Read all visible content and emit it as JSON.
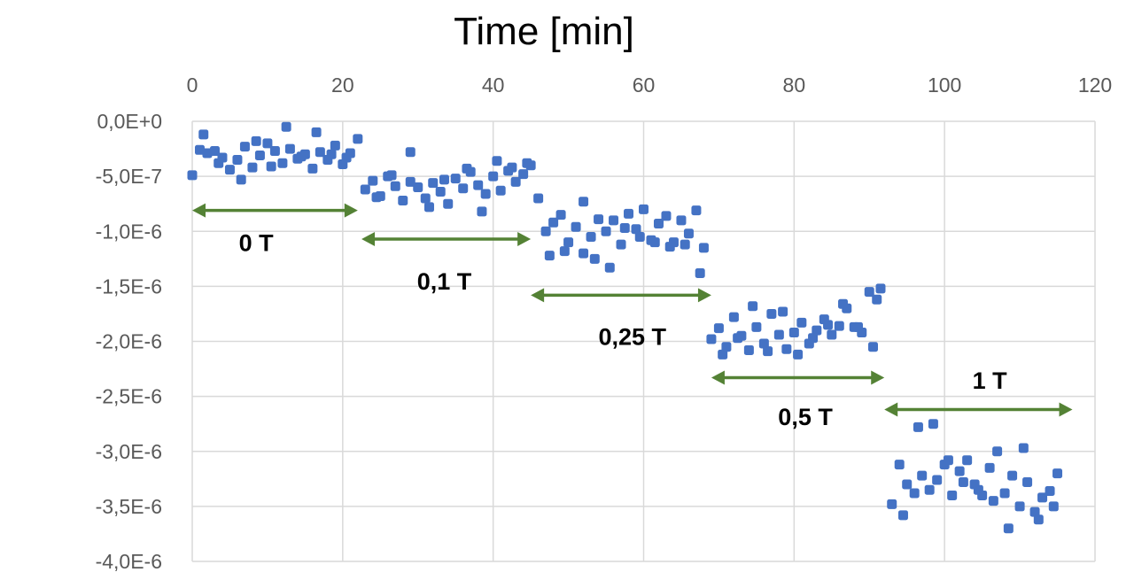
{
  "chart_data": {
    "type": "scatter",
    "title": "Time [min]",
    "xlabel": "",
    "ylabel": "",
    "xlim": [
      0,
      120
    ],
    "ylim": [
      -4e-06,
      0
    ],
    "x_axis_position": "top",
    "grid": true,
    "xticks": [
      "0",
      "20",
      "40",
      "60",
      "80",
      "100",
      "120"
    ],
    "yticks": [
      "0,0E+0",
      "-5,0E-7",
      "-1,0E-6",
      "-1,5E-6",
      "-2,0E-6",
      "-2,5E-6",
      "-3,0E-6",
      "-3,5E-6",
      "-4,0E-6"
    ],
    "marker_color": "#4472c4",
    "series": [
      {
        "x": [
          0,
          1,
          2,
          3,
          4,
          5,
          6,
          7,
          8,
          9,
          10,
          11,
          12,
          13,
          14,
          15,
          16,
          17,
          18,
          19,
          20,
          21,
          22,
          1.5,
          3.5,
          6.5,
          8.5,
          10.5,
          12.5,
          14.5,
          16.5,
          18.5,
          20.5
        ],
        "y": [
          -4.9e-07,
          -2.6e-07,
          -2.9e-07,
          -2.7e-07,
          -3.3e-07,
          -4.4e-07,
          -3.5e-07,
          -2.3e-07,
          -4.2e-07,
          -3.1e-07,
          -2e-07,
          -2.7e-07,
          -3.8e-07,
          -2.5e-07,
          -3.4e-07,
          -3e-07,
          -4.3e-07,
          -2.8e-07,
          -3.5e-07,
          -2.2e-07,
          -3.9e-07,
          -2.9e-07,
          -1.6e-07,
          -1.2e-07,
          -3.8e-07,
          -5.3e-07,
          -1.8e-07,
          -4.1e-07,
          -5e-08,
          -3.2e-07,
          -1e-07,
          -3e-07,
          -3.3e-07
        ]
      },
      {
        "x": [
          23,
          24,
          25,
          26,
          27,
          28,
          29,
          30,
          31,
          32,
          33,
          34,
          35,
          36,
          37,
          38,
          39,
          40,
          41,
          42,
          43,
          44,
          45,
          24.5,
          26.5,
          29,
          31.5,
          33.5,
          36.5,
          38.5,
          40.5,
          42.5,
          44.5
        ],
        "y": [
          -6.2e-07,
          -5.4e-07,
          -6.8e-07,
          -5e-07,
          -5.9e-07,
          -7.2e-07,
          -5.5e-07,
          -6e-07,
          -7e-07,
          -5.6e-07,
          -6.4e-07,
          -7.5e-07,
          -5.2e-07,
          -6.1e-07,
          -4.6e-07,
          -5.8e-07,
          -6.6e-07,
          -5e-07,
          -6.3e-07,
          -4.5e-07,
          -5.5e-07,
          -4.8e-07,
          -4e-07,
          -6.9e-07,
          -4.9e-07,
          -2.8e-07,
          -7.8e-07,
          -5.3e-07,
          -4.3e-07,
          -8.2e-07,
          -3.6e-07,
          -4.2e-07,
          -3.8e-07
        ]
      },
      {
        "x": [
          46,
          47,
          48,
          49,
          50,
          51,
          52,
          53,
          54,
          55,
          56,
          57,
          58,
          59,
          60,
          61,
          62,
          63,
          64,
          65,
          66,
          67,
          68,
          47.5,
          49.5,
          52,
          53.5,
          55.5,
          57.5,
          59.5,
          61.5,
          63.5,
          65.5,
          67.5
        ],
        "y": [
          -7e-07,
          -1e-06,
          -9.2e-07,
          -8.5e-07,
          -1.1e-06,
          -9.6e-07,
          -7.3e-07,
          -1.05e-06,
          -8.9e-07,
          -1e-06,
          -9e-07,
          -1.12e-06,
          -8.4e-07,
          -9.8e-07,
          -8e-07,
          -1.08e-06,
          -9.3e-07,
          -8.6e-07,
          -1.1e-06,
          -9e-07,
          -1.02e-06,
          -8.1e-07,
          -1.15e-06,
          -1.22e-06,
          -1.18e-06,
          -1.2e-06,
          -1.25e-06,
          -1.33e-06,
          -9.7e-07,
          -1.05e-06,
          -1.1e-06,
          -1.14e-06,
          -1.12e-06,
          -1.38e-06
        ]
      },
      {
        "x": [
          69,
          70,
          71,
          72,
          73,
          74,
          75,
          76,
          77,
          78,
          79,
          80,
          81,
          82,
          83,
          84,
          85,
          86,
          87,
          88,
          89,
          90,
          91,
          70.5,
          72.5,
          74.5,
          76.5,
          78.5,
          80.5,
          82.5,
          84.5,
          86.5,
          88.5,
          90.5,
          91.5
        ],
        "y": [
          -1.98e-06,
          -1.88e-06,
          -2.05e-06,
          -1.78e-06,
          -1.95e-06,
          -2.08e-06,
          -1.87e-06,
          -2.02e-06,
          -1.75e-06,
          -1.94e-06,
          -2.07e-06,
          -1.92e-06,
          -1.83e-06,
          -2.02e-06,
          -1.9e-06,
          -1.8e-06,
          -1.94e-06,
          -1.86e-06,
          -1.7e-06,
          -1.87e-06,
          -1.92e-06,
          -1.55e-06,
          -1.62e-06,
          -2.12e-06,
          -1.97e-06,
          -1.68e-06,
          -2.09e-06,
          -1.73e-06,
          -2.12e-06,
          -1.97e-06,
          -1.85e-06,
          -1.66e-06,
          -1.87e-06,
          -2.05e-06,
          -1.52e-06
        ]
      },
      {
        "x": [
          93,
          94,
          95,
          96,
          97,
          98,
          99,
          100,
          101,
          102,
          103,
          104,
          105,
          106,
          107,
          108,
          109,
          110,
          111,
          112,
          113,
          114,
          115,
          94.5,
          96.5,
          98.5,
          100.5,
          102.5,
          104.5,
          106.5,
          108.5,
          110.5,
          112.5,
          114.5
        ],
        "y": [
          -3.48e-06,
          -3.12e-06,
          -3.3e-06,
          -3.38e-06,
          -3.22e-06,
          -3.35e-06,
          -3.26e-06,
          -3.12e-06,
          -3.4e-06,
          -3.18e-06,
          -3.08e-06,
          -3.3e-06,
          -3.4e-06,
          -3.15e-06,
          -3e-06,
          -3.38e-06,
          -3.22e-06,
          -3.5e-06,
          -3.28e-06,
          -3.55e-06,
          -3.42e-06,
          -3.36e-06,
          -3.2e-06,
          -3.58e-06,
          -2.78e-06,
          -2.75e-06,
          -3.08e-06,
          -3.28e-06,
          -3.35e-06,
          -3.45e-06,
          -3.7e-06,
          -2.97e-06,
          -3.62e-06,
          -3.5e-06
        ]
      }
    ],
    "annotations": [
      {
        "text": "0 T",
        "x_start": 0,
        "x_end": 22,
        "arrow_y": -8.1e-07,
        "label_x": 8.5,
        "label_y": -1.1e-06,
        "color": "#548235"
      },
      {
        "text": "0,1 T",
        "x_start": 22.5,
        "x_end": 45,
        "arrow_y": -1.07e-06,
        "label_x": 33.5,
        "label_y": -1.45e-06,
        "color": "#548235"
      },
      {
        "text": "0,25 T",
        "x_start": 45,
        "x_end": 69,
        "arrow_y": -1.58e-06,
        "label_x": 58.5,
        "label_y": -1.95e-06,
        "color": "#548235"
      },
      {
        "text": "0,5 T",
        "x_start": 69,
        "x_end": 92,
        "arrow_y": -2.33e-06,
        "label_x": 81.5,
        "label_y": -2.68e-06,
        "color": "#548235"
      },
      {
        "text": "1 T",
        "x_start": 92,
        "x_end": 117,
        "arrow_y": -2.62e-06,
        "label_x": 106,
        "label_y": -2.35e-06,
        "color": "#548235"
      }
    ]
  }
}
